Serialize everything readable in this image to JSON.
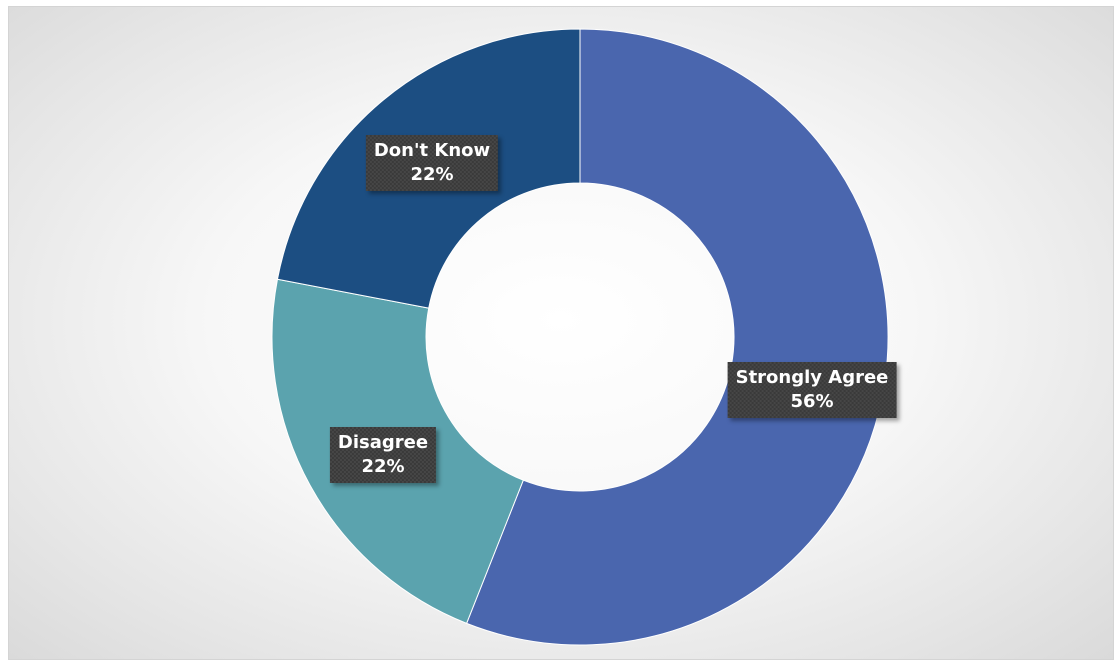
{
  "chart_data": {
    "type": "pie",
    "donut": true,
    "start_angle_deg": 0,
    "direction": "clockwise",
    "hole_ratio": 0.5,
    "slices": [
      {
        "label": "Strongly Agree",
        "value": 56,
        "pct_text": "56%",
        "color": "#4A66AE"
      },
      {
        "label": "Disagree",
        "value": 22,
        "pct_text": "22%",
        "color": "#5BA3AE"
      },
      {
        "label": "Don't Know",
        "value": 22,
        "pct_text": "22%",
        "color": "#1C4E82"
      }
    ]
  }
}
